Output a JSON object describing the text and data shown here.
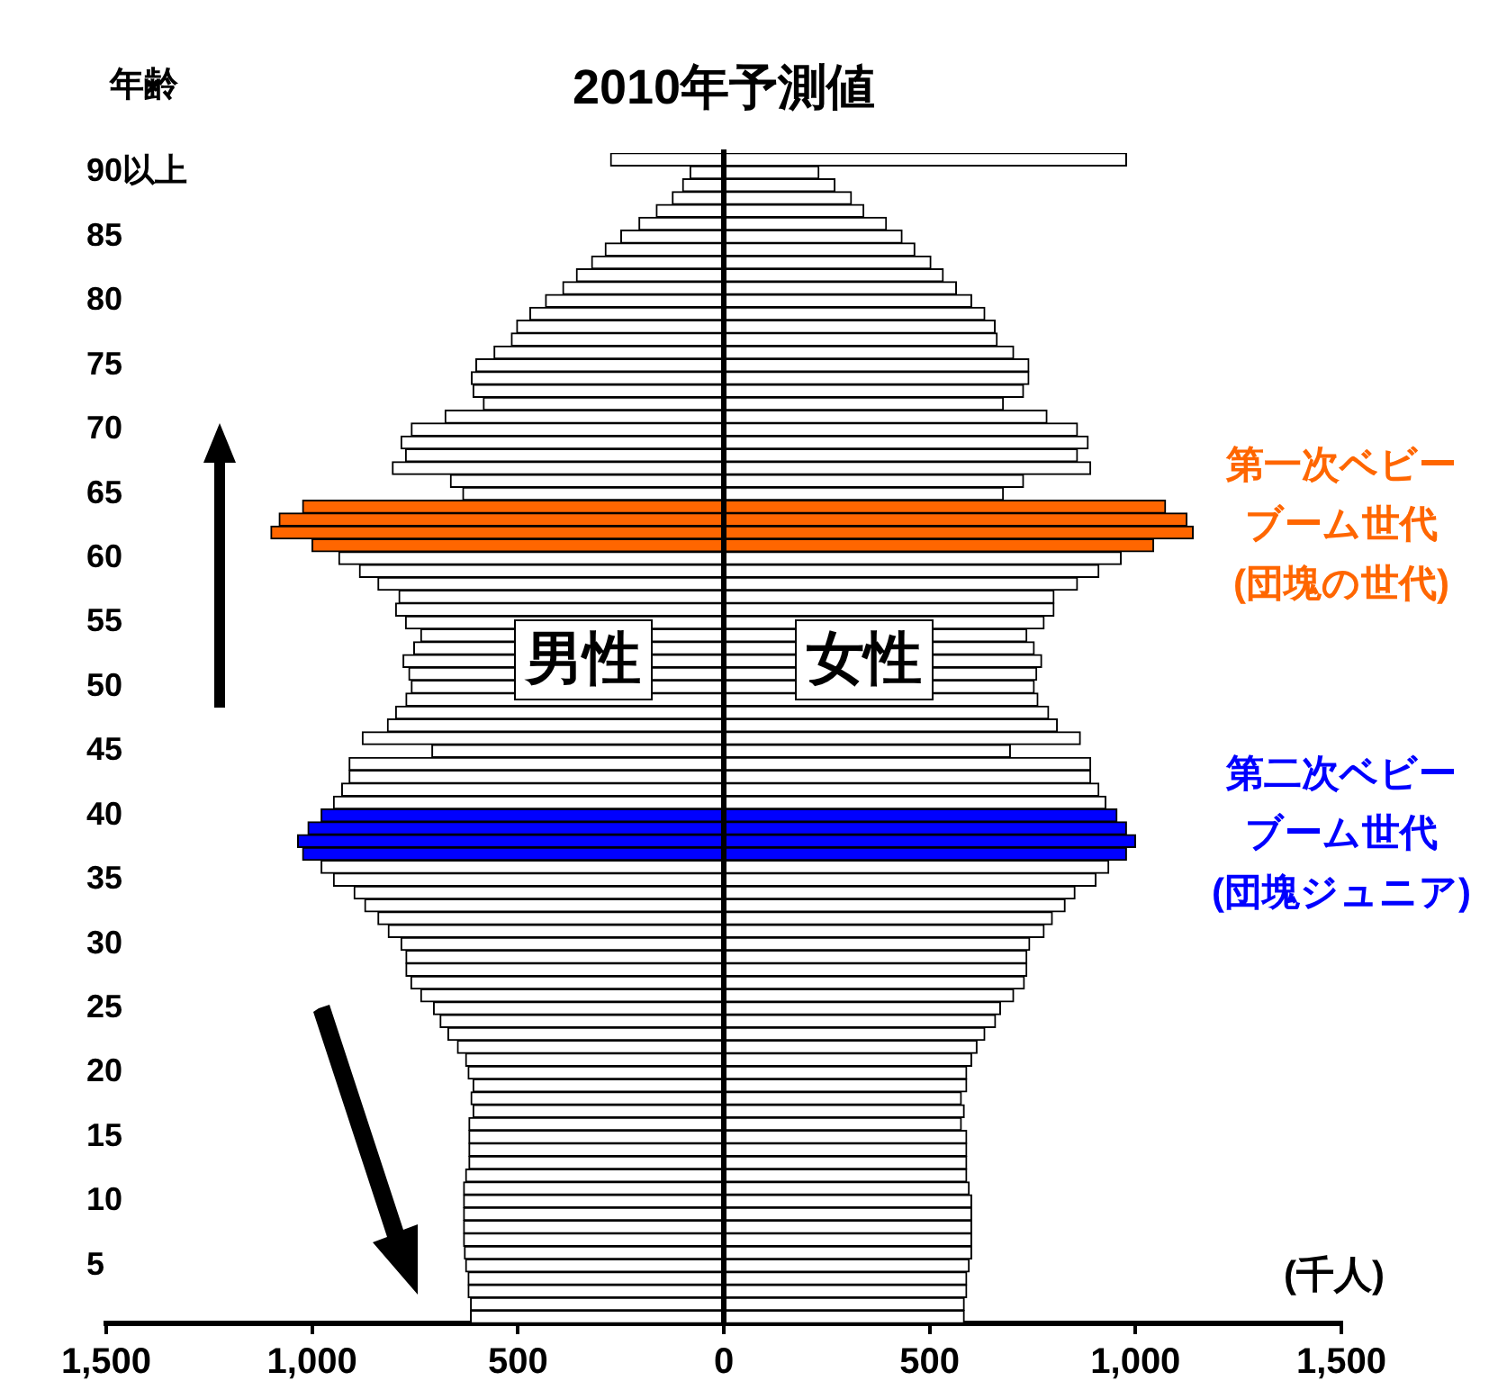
{
  "chart_data": {
    "type": "bar",
    "orientation": "horizontal",
    "stacked": true,
    "title": "2010年予測値",
    "ylabel": "年齢",
    "xlabel": "(千人)",
    "categories": [
      null,
      "90以上",
      null,
      null,
      null,
      null,
      "85",
      null,
      null,
      null,
      null,
      "80",
      null,
      null,
      null,
      null,
      "75",
      null,
      null,
      null,
      null,
      "70",
      null,
      null,
      null,
      null,
      "65",
      null,
      null,
      null,
      null,
      "60",
      null,
      null,
      null,
      null,
      "55",
      null,
      null,
      null,
      null,
      "50",
      null,
      null,
      null,
      null,
      "45",
      null,
      null,
      null,
      null,
      "40",
      null,
      null,
      null,
      null,
      "35",
      null,
      null,
      null,
      null,
      "30",
      null,
      null,
      null,
      null,
      "25",
      null,
      null,
      null,
      null,
      "20",
      null,
      null,
      null,
      null,
      "15",
      null,
      null,
      null,
      null,
      "10",
      null,
      null,
      null,
      null,
      "5",
      null,
      null,
      null,
      null
    ],
    "series": [
      {
        "name": "男性",
        "values": [
          -275,
          -82,
          -100,
          -125,
          -164,
          -206,
          -250,
          -288,
          -321,
          -358,
          -391,
          -433,
          -471,
          -503,
          -516,
          -558,
          -602,
          -613,
          -609,
          -584,
          -677,
          -759,
          -784,
          -773,
          -805,
          -664,
          -634,
          -1023,
          -1080,
          -1100,
          -1000,
          -935,
          -885,
          -840,
          -789,
          -797,
          -773,
          -736,
          -753,
          -779,
          -765,
          -759,
          -772,
          -797,
          -817,
          -878,
          -709,
          -910,
          -910,
          -928,
          -948,
          -978,
          -1010,
          -1035,
          -1023,
          -978,
          -948,
          -898,
          -872,
          -840,
          -815,
          -784,
          -772,
          -772,
          -760,
          -736,
          -705,
          -689,
          -670,
          -647,
          -627,
          -621,
          -609,
          -614,
          -609,
          -619,
          -619,
          -619,
          -619,
          -627,
          -632,
          -632,
          -632,
          -632,
          -632,
          -630,
          -627,
          -621,
          -621,
          -615,
          -615
        ],
        "colors": [
          "#ffffff",
          "#ffffff",
          "#ffffff",
          "#ffffff",
          "#ffffff",
          "#ffffff",
          "#ffffff",
          "#ffffff",
          "#ffffff",
          "#ffffff",
          "#ffffff",
          "#ffffff",
          "#ffffff",
          "#ffffff",
          "#ffffff",
          "#ffffff",
          "#ffffff",
          "#ffffff",
          "#ffffff",
          "#ffffff",
          "#ffffff",
          "#ffffff",
          "#ffffff",
          "#ffffff",
          "#ffffff",
          "#ffffff",
          "#ffffff",
          "#ff6600",
          "#ff6600",
          "#ff6600",
          "#ff6600",
          "#ffffff",
          "#ffffff",
          "#ffffff",
          "#ffffff",
          "#ffffff",
          "#ffffff",
          "#ffffff",
          "#ffffff",
          "#ffffff",
          "#ffffff",
          "#ffffff",
          "#ffffff",
          "#ffffff",
          "#ffffff",
          "#ffffff",
          "#ffffff",
          "#ffffff",
          "#ffffff",
          "#ffffff",
          "#ffffff",
          "#0000ff",
          "#0000ff",
          "#0000ff",
          "#0000ff",
          "#ffffff",
          "#ffffff",
          "#ffffff",
          "#ffffff",
          "#ffffff",
          "#ffffff",
          "#ffffff",
          "#ffffff",
          "#ffffff",
          "#ffffff",
          "#ffffff",
          "#ffffff",
          "#ffffff",
          "#ffffff",
          "#ffffff",
          "#ffffff",
          "#ffffff",
          "#ffffff",
          "#ffffff",
          "#ffffff",
          "#ffffff",
          "#ffffff",
          "#ffffff",
          "#ffffff",
          "#ffffff",
          "#ffffff",
          "#ffffff",
          "#ffffff",
          "#ffffff",
          "#ffffff",
          "#ffffff",
          "#ffffff",
          "#ffffff",
          "#ffffff",
          "#ffffff",
          "#ffffff"
        ]
      },
      {
        "name": "女性",
        "values": [
          978,
          231,
          270,
          310,
          340,
          395,
          433,
          464,
          503,
          533,
          565,
          602,
          634,
          659,
          664,
          704,
          741,
          741,
          728,
          679,
          785,
          859,
          885,
          859,
          891,
          728,
          679,
          1073,
          1125,
          1140,
          1044,
          965,
          911,
          859,
          802,
          802,
          778,
          736,
          754,
          772,
          760,
          754,
          763,
          789,
          810,
          866,
          696,
          891,
          891,
          911,
          928,
          955,
          978,
          1000,
          978,
          935,
          904,
          853,
          829,
          798,
          778,
          743,
          736,
          736,
          730,
          704,
          672,
          660,
          634,
          615,
          602,
          590,
          590,
          577,
          584,
          577,
          590,
          590,
          590,
          590,
          596,
          602,
          602,
          602,
          602,
          602,
          596,
          590,
          590,
          584,
          584
        ],
        "colors": [
          "#ffffff",
          "#ffffff",
          "#ffffff",
          "#ffffff",
          "#ffffff",
          "#ffffff",
          "#ffffff",
          "#ffffff",
          "#ffffff",
          "#ffffff",
          "#ffffff",
          "#ffffff",
          "#ffffff",
          "#ffffff",
          "#ffffff",
          "#ffffff",
          "#ffffff",
          "#ffffff",
          "#ffffff",
          "#ffffff",
          "#ffffff",
          "#ffffff",
          "#ffffff",
          "#ffffff",
          "#ffffff",
          "#ffffff",
          "#ffffff",
          "#ff6600",
          "#ff6600",
          "#ff6600",
          "#ff6600",
          "#ffffff",
          "#ffffff",
          "#ffffff",
          "#ffffff",
          "#ffffff",
          "#ffffff",
          "#ffffff",
          "#ffffff",
          "#ffffff",
          "#ffffff",
          "#ffffff",
          "#ffffff",
          "#ffffff",
          "#ffffff",
          "#ffffff",
          "#ffffff",
          "#ffffff",
          "#ffffff",
          "#ffffff",
          "#ffffff",
          "#0000ff",
          "#0000ff",
          "#0000ff",
          "#0000ff",
          "#ffffff",
          "#ffffff",
          "#ffffff",
          "#ffffff",
          "#ffffff",
          "#ffffff",
          "#ffffff",
          "#ffffff",
          "#ffffff",
          "#ffffff",
          "#ffffff",
          "#ffffff",
          "#ffffff",
          "#ffffff",
          "#ffffff",
          "#ffffff",
          "#ffffff",
          "#ffffff",
          "#ffffff",
          "#ffffff",
          "#ffffff",
          "#ffffff",
          "#ffffff",
          "#ffffff",
          "#ffffff",
          "#ffffff",
          "#ffffff",
          "#ffffff",
          "#ffffff",
          "#ffffff",
          "#ffffff",
          "#ffffff",
          "#ffffff",
          "#ffffff",
          "#ffffff",
          "#ffffff"
        ]
      }
    ],
    "xlim": [
      -1500,
      1500
    ],
    "xticks": [
      {
        "value": -1500,
        "label": "1,500"
      },
      {
        "value": -1000,
        "label": "1,000"
      },
      {
        "value": -500,
        "label": "500"
      },
      0,
      500,
      {
        "value": 1000,
        "label": "1,000"
      },
      {
        "value": 1500,
        "label": "1,500"
      }
    ],
    "ref_lines": [
      {
        "axis": "x",
        "value": 0,
        "color": "#000000"
      }
    ],
    "annotations": [
      "第一次ベビーブーム世代(団塊の世代)",
      "第二次ベビーブーム世代(団塊ジュニア)"
    ],
    "grid": false,
    "legend": false
  }
}
